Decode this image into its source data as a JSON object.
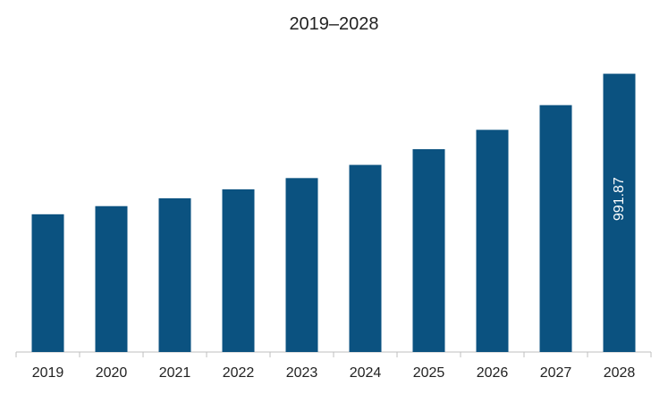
{
  "chart_data": {
    "type": "bar",
    "title": "2019–2028",
    "xlabel": "",
    "ylabel": "",
    "categories": [
      "2019",
      "2020",
      "2021",
      "2022",
      "2023",
      "2024",
      "2025",
      "2026",
      "2027",
      "2028"
    ],
    "values": [
      491,
      520,
      548,
      580,
      620,
      667,
      723,
      792,
      880,
      991.87
    ],
    "data_labels": [
      {
        "category": "2028",
        "text": "991.87"
      }
    ],
    "ylim": [
      0,
      1000
    ],
    "grid": false,
    "legend": "none",
    "colors": {
      "bar": "#0b5280",
      "axis": "#bfbfbf",
      "text": "#222222",
      "data_label": "#ffffff"
    }
  }
}
